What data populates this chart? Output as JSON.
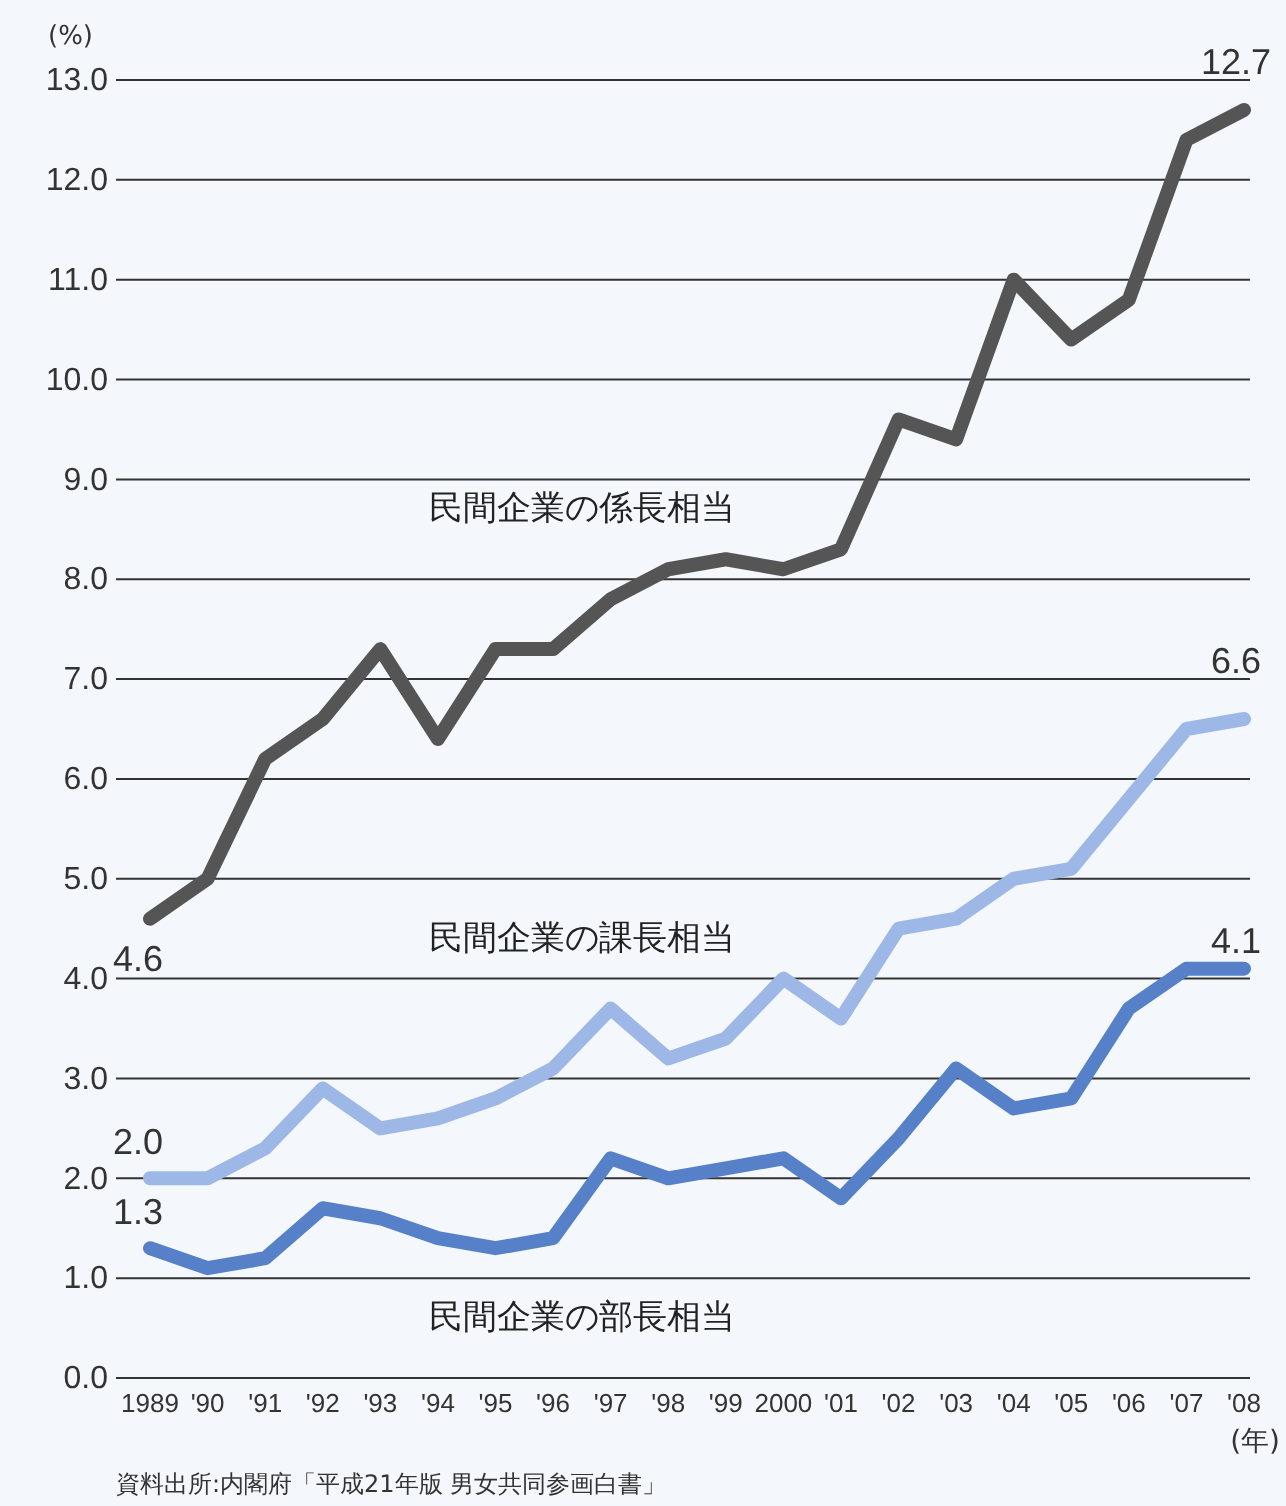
{
  "chart_data": {
    "type": "line",
    "ylabel": "(%)",
    "xlabel": "(年)",
    "categories": [
      "1989",
      "'90",
      "'91",
      "'92",
      "'93",
      "'94",
      "'95",
      "'96",
      "'97",
      "'98",
      "'99",
      "2000",
      "'01",
      "'02",
      "'03",
      "'04",
      "'05",
      "'06",
      "'07",
      "'08"
    ],
    "series": [
      {
        "name": "民間企業の係長相当",
        "color": "#555555",
        "values": [
          4.6,
          5.0,
          6.2,
          6.6,
          7.3,
          6.4,
          7.3,
          7.3,
          7.8,
          8.1,
          8.2,
          8.1,
          8.3,
          9.6,
          9.4,
          11.0,
          10.4,
          10.8,
          12.4,
          12.7
        ],
        "value_labels": [
          "4.6",
          null,
          null,
          null,
          null,
          null,
          null,
          null,
          null,
          null,
          null,
          null,
          null,
          null,
          null,
          null,
          null,
          null,
          null,
          "12.7"
        ]
      },
      {
        "name": "民間企業の課長相当",
        "color": "#9db8e6",
        "values": [
          2.0,
          2.0,
          2.3,
          2.9,
          2.5,
          2.6,
          2.8,
          3.1,
          3.7,
          3.2,
          3.4,
          4.0,
          3.6,
          4.5,
          4.6,
          5.0,
          5.1,
          5.8,
          6.5,
          6.6
        ],
        "value_labels": [
          "2.0",
          null,
          null,
          null,
          null,
          null,
          null,
          null,
          null,
          null,
          null,
          null,
          null,
          null,
          null,
          null,
          null,
          null,
          null,
          "6.6"
        ]
      },
      {
        "name": "民間企業の部長相当",
        "color": "#5681c9",
        "values": [
          1.3,
          1.1,
          1.2,
          1.7,
          1.6,
          1.4,
          1.3,
          1.4,
          2.2,
          2.0,
          2.1,
          2.2,
          1.8,
          2.4,
          3.1,
          2.7,
          2.8,
          3.7,
          4.1,
          4.1
        ],
        "value_labels": [
          "1.3",
          null,
          null,
          null,
          null,
          null,
          null,
          null,
          null,
          null,
          null,
          null,
          null,
          null,
          null,
          null,
          null,
          null,
          null,
          "4.1"
        ]
      }
    ],
    "ylim": [
      0,
      13
    ],
    "yticks": [
      {
        "value": 0,
        "label": "0.0"
      },
      {
        "value": 1,
        "label": "1.0"
      },
      {
        "value": 2,
        "label": "2.0"
      },
      {
        "value": 3,
        "label": "3.0"
      },
      {
        "value": 4,
        "label": "4.0"
      },
      {
        "value": 5,
        "label": "5.0"
      },
      {
        "value": 6,
        "label": "6.0"
      },
      {
        "value": 7,
        "label": "7.0"
      },
      {
        "value": 8,
        "label": "8.0"
      },
      {
        "value": 9,
        "label": "9.0"
      },
      {
        "value": 10,
        "label": "10.0"
      },
      {
        "value": 11,
        "label": "11.0"
      },
      {
        "value": 12,
        "label": "12.0"
      },
      {
        "value": 13,
        "label": "13.0"
      }
    ],
    "grid": "y",
    "legend": false,
    "marker": "none",
    "line_style": "solid",
    "annotations": [
      "資料出所:内閣府「平成21年版 男女共同参画白書」"
    ]
  }
}
